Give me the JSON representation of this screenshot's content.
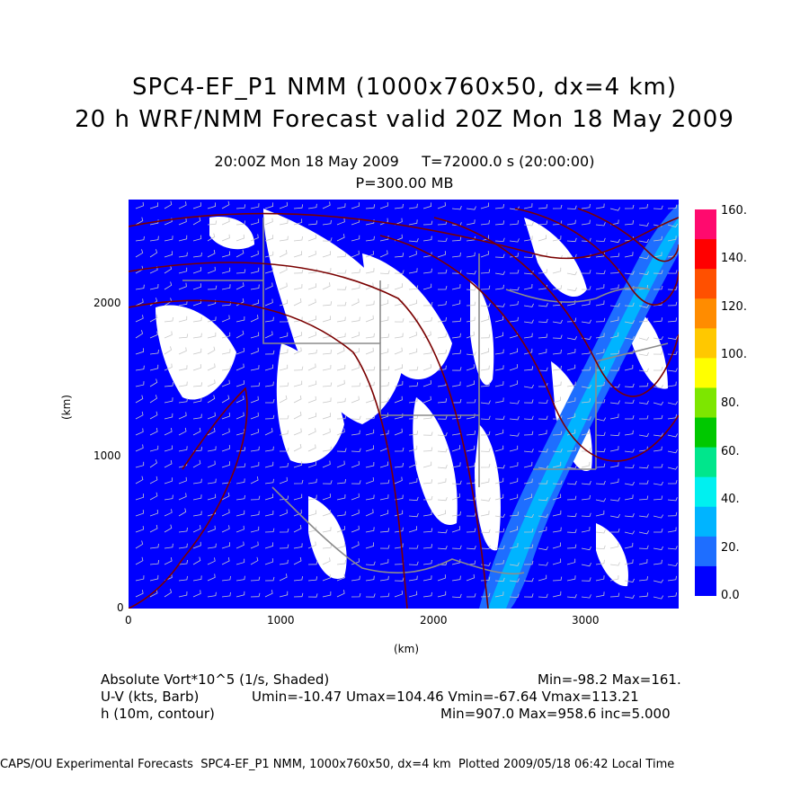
{
  "title": {
    "line1": "SPC4-EF_P1 NMM (1000x760x50, dx=4 km)",
    "line2": "20 h WRF/NMM Forecast valid 20Z Mon 18 May 2009"
  },
  "subtitle": {
    "time": "20:00Z Mon 18 May 2009     T=72000.0 s (20:00:00)",
    "level": "P=300.00 MB"
  },
  "axes": {
    "x_ticks": [
      "0",
      "1000",
      "2000",
      "3000"
    ],
    "y_ticks": [
      "0",
      "1000",
      "2000"
    ],
    "x_label": "(km)",
    "y_label": "(km)"
  },
  "colorbar": {
    "labels": [
      "0.0",
      "20.",
      "40.",
      "60.",
      "80.",
      "100.",
      "120.",
      "140.",
      "160."
    ],
    "colors": [
      "#0000ff",
      "#1e6eff",
      "#00b4ff",
      "#00f0f0",
      "#00e68c",
      "#00c800",
      "#7de600",
      "#ffff00",
      "#ffc800",
      "#ff8c00",
      "#ff5000",
      "#ff0000",
      "#ff0a6e"
    ]
  },
  "info": {
    "vort_label": "Absolute Vort*10^5 (1/s, Shaded)",
    "vort_stats": "Min=-98.2 Max=161.",
    "wind_label": "U-V (kts, Barb)",
    "wind_stats": "Umin=-10.47 Umax=104.46 Vmin=-67.64 Vmax=113.21",
    "h_label": "h (10m, contour)",
    "h_stats": "Min=907.0 Max=958.6 inc=5.000"
  },
  "footer": "CAPS/OU Experimental Forecasts  SPC4-EF_P1 NMM, 1000x760x50, dx=4 km  Plotted 2009/05/18 06:42 Local Time",
  "style": {
    "map_fill": "#0000ff",
    "contour_color": "#7a0000",
    "boundary_color": "#8c8c8c"
  }
}
